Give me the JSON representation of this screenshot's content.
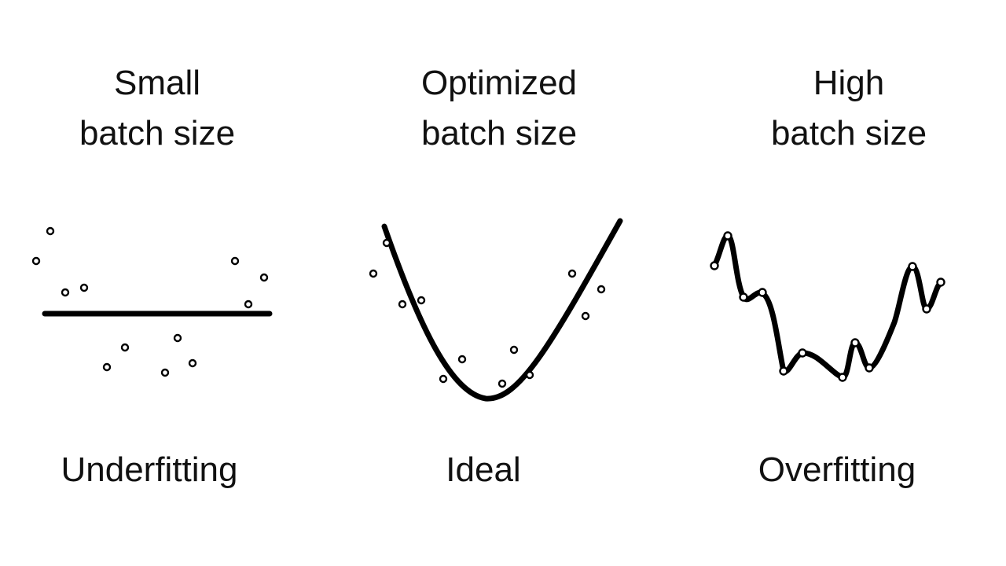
{
  "panels": [
    {
      "title_line1": "Small",
      "title_line2": "batch size",
      "caption": "Underfitting"
    },
    {
      "title_line1": "Optimized",
      "title_line2": "batch size",
      "caption": "Ideal"
    },
    {
      "title_line1": "High",
      "title_line2": "batch size",
      "caption": "Overfitting"
    }
  ],
  "colors": {
    "background": "#ffffff",
    "ink": "#000000"
  }
}
